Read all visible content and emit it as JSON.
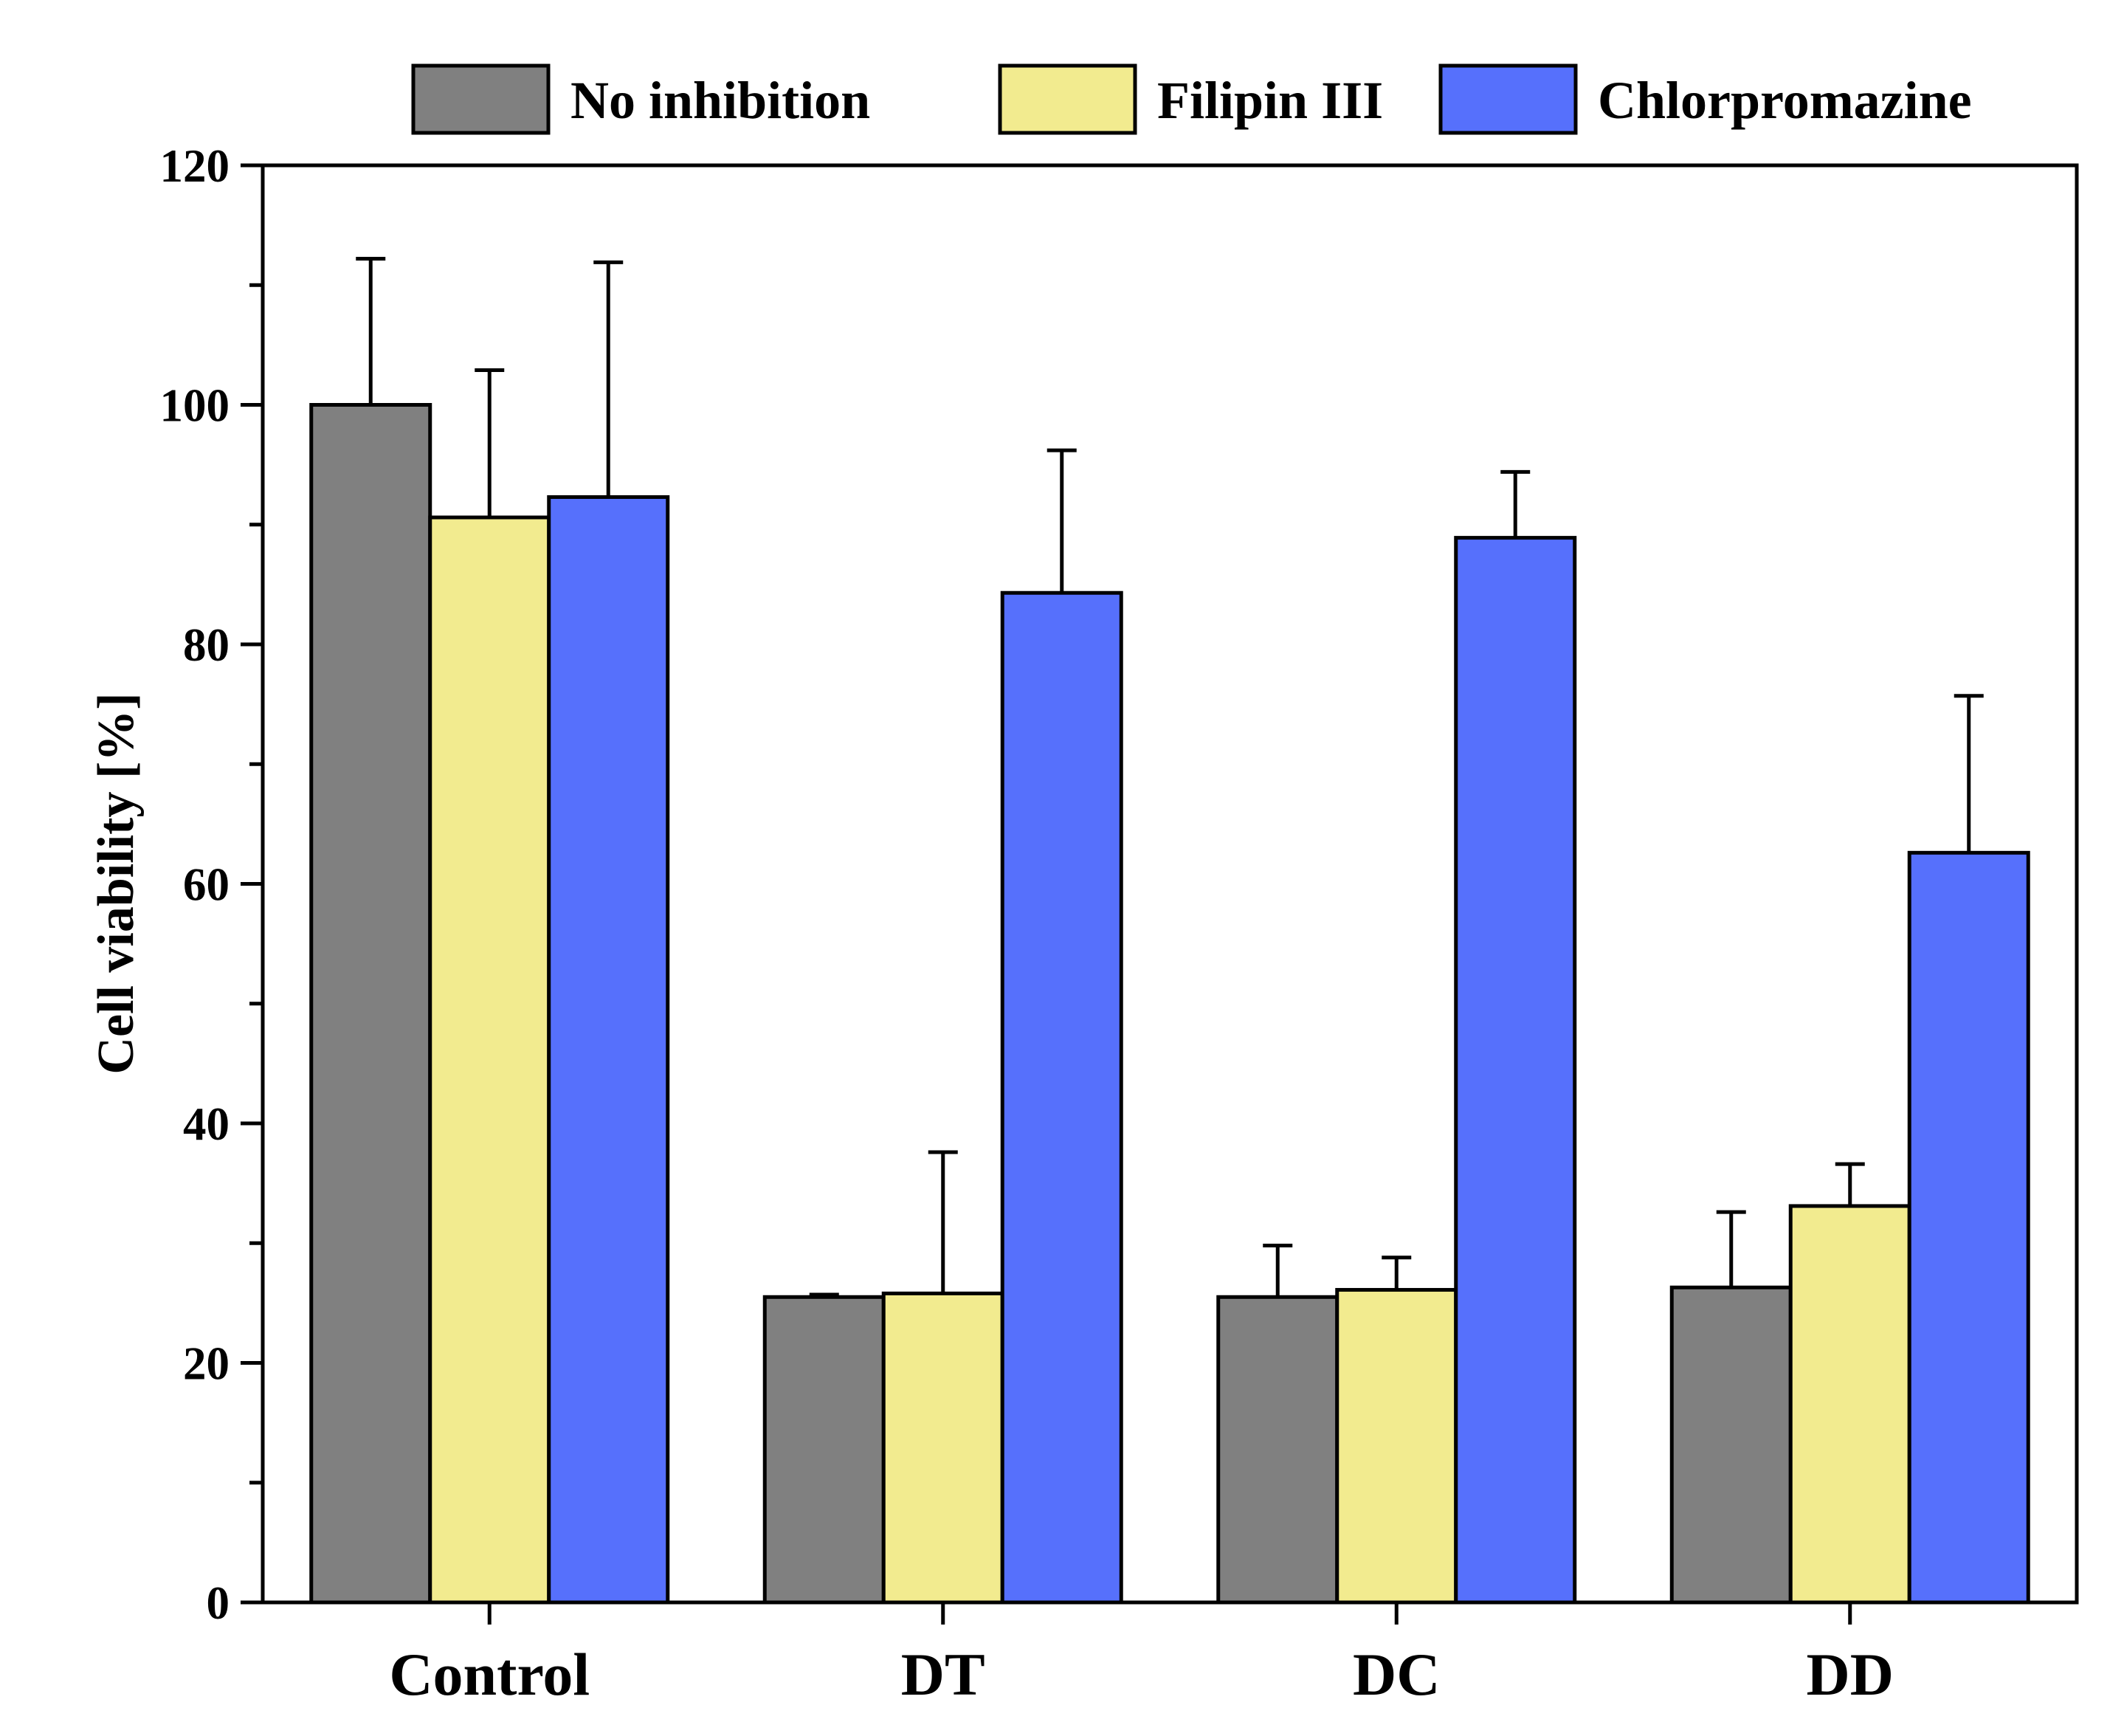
{
  "chart_data": {
    "type": "bar",
    "title": "",
    "xlabel": "",
    "ylabel": "Cell viability [%]",
    "ylim": [
      0,
      120
    ],
    "yticks": [
      0,
      20,
      40,
      60,
      80,
      100,
      120
    ],
    "yminor_step": 10,
    "grid": false,
    "legend_position": "top",
    "categories": [
      "Control",
      "DT",
      "DC",
      "DD"
    ],
    "series": [
      {
        "name": "No inhibition",
        "color": "#808080",
        "values": [
          100,
          25.5,
          25.5,
          26.3
        ],
        "errors": [
          12.2,
          0.2,
          4.3,
          6.3
        ]
      },
      {
        "name": "Filipin III",
        "color": "#F2EB8F",
        "values": [
          90.6,
          25.8,
          26.1,
          33.1
        ],
        "errors": [
          12.3,
          11.8,
          2.7,
          3.5
        ]
      },
      {
        "name": "Chlorpromazine",
        "color": "#5670FC",
        "values": [
          92.3,
          84.3,
          88.9,
          62.6
        ],
        "errors": [
          19.6,
          11.9,
          5.5,
          13.1
        ]
      }
    ]
  }
}
